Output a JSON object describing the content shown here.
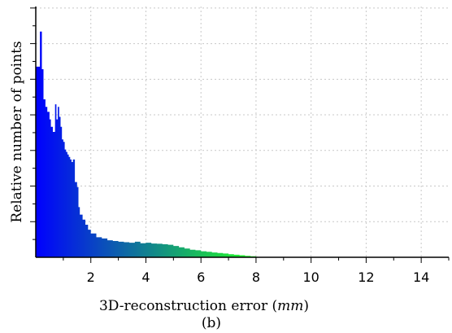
{
  "chart_data": {
    "type": "area",
    "xlabel": "3D-reconstruction error",
    "xlabel_unit": "mm",
    "ylabel": "Relative number of points",
    "caption": "(b)",
    "xlim": [
      0,
      15
    ],
    "ylim": [
      0,
      1
    ],
    "x_ticks": [
      2,
      4,
      6,
      8,
      10,
      12,
      14
    ],
    "y_grid": [
      0.142,
      0.284,
      0.426,
      0.568,
      0.71,
      0.852,
      0.994
    ],
    "grid": true,
    "colors": {
      "start": "#0000ff",
      "end": "#22ff22"
    },
    "x": [
      0.0,
      0.15,
      0.22,
      0.28,
      0.35,
      0.42,
      0.5,
      0.55,
      0.62,
      0.7,
      0.75,
      0.8,
      0.85,
      0.9,
      0.95,
      1.0,
      1.05,
      1.1,
      1.15,
      1.2,
      1.25,
      1.3,
      1.35,
      1.42,
      1.5,
      1.55,
      1.6,
      1.7,
      1.8,
      1.9,
      2.0,
      2.2,
      2.4,
      2.6,
      2.8,
      3.0,
      3.2,
      3.4,
      3.6,
      3.8,
      4.0,
      4.2,
      4.4,
      4.6,
      4.8,
      5.0,
      5.2,
      5.4,
      5.6,
      5.8,
      6.0,
      6.2,
      6.4,
      6.6,
      6.8,
      7.0,
      7.2,
      7.4,
      7.6,
      7.8,
      8.0
    ],
    "y": [
      0.76,
      0.9,
      0.75,
      0.63,
      0.6,
      0.58,
      0.55,
      0.52,
      0.5,
      0.61,
      0.55,
      0.6,
      0.56,
      0.52,
      0.47,
      0.46,
      0.43,
      0.42,
      0.41,
      0.4,
      0.39,
      0.38,
      0.39,
      0.3,
      0.28,
      0.2,
      0.17,
      0.15,
      0.13,
      0.11,
      0.095,
      0.08,
      0.075,
      0.068,
      0.065,
      0.062,
      0.06,
      0.058,
      0.062,
      0.056,
      0.058,
      0.055,
      0.054,
      0.052,
      0.05,
      0.045,
      0.04,
      0.035,
      0.03,
      0.028,
      0.024,
      0.022,
      0.019,
      0.017,
      0.015,
      0.012,
      0.01,
      0.008,
      0.006,
      0.004,
      0.002
    ]
  }
}
